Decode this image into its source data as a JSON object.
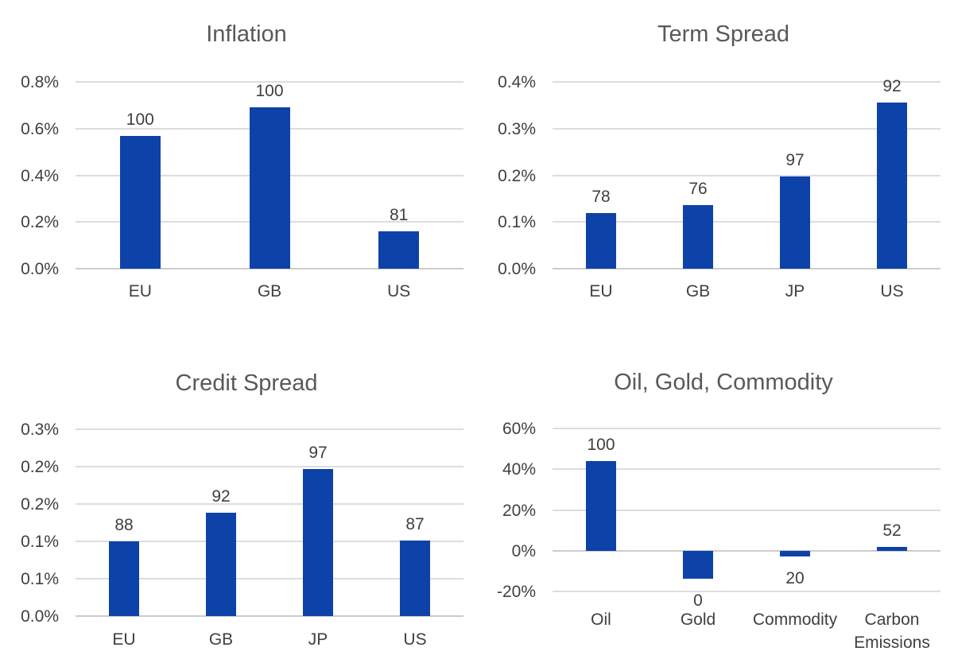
{
  "colors": {
    "bar_fill": "#0d42a8",
    "gridline": "#dddddd",
    "zero_line": "#cccccc",
    "title_text": "#595959",
    "label_text": "#404040",
    "background": "#ffffff"
  },
  "chart_data": [
    {
      "type": "bar",
      "title": "Inflation",
      "categories": [
        "EU",
        "GB",
        "US"
      ],
      "values": [
        0.568,
        0.691,
        0.16
      ],
      "bar_labels": [
        "100",
        "100",
        "81"
      ],
      "ylim": [
        0,
        0.8
      ],
      "yticks": [
        {
          "value": 0.8,
          "label": "0.8%"
        },
        {
          "value": 0.6,
          "label": "0.6%"
        },
        {
          "value": 0.4,
          "label": "0.4%"
        },
        {
          "value": 0.2,
          "label": "0.2%"
        },
        {
          "value": 0.0,
          "label": "0.0%"
        }
      ],
      "grid": true,
      "legend": "none"
    },
    {
      "type": "bar",
      "title": "Term Spread",
      "categories": [
        "EU",
        "GB",
        "JP",
        "US"
      ],
      "values": [
        0.12,
        0.136,
        0.197,
        0.356
      ],
      "bar_labels": [
        "78",
        "76",
        "97",
        "92"
      ],
      "ylim": [
        0,
        0.4
      ],
      "yticks": [
        {
          "value": 0.4,
          "label": "0.4%"
        },
        {
          "value": 0.3,
          "label": "0.3%"
        },
        {
          "value": 0.2,
          "label": "0.2%"
        },
        {
          "value": 0.1,
          "label": "0.1%"
        },
        {
          "value": 0.0,
          "label": "0.0%"
        }
      ],
      "grid": true,
      "legend": "none"
    },
    {
      "type": "bar",
      "title": "Credit Spread",
      "categories": [
        "EU",
        "GB",
        "JP",
        "US"
      ],
      "values": [
        0.1,
        0.138,
        0.197,
        0.101
      ],
      "bar_labels": [
        "88",
        "92",
        "97",
        "87"
      ],
      "ylim": [
        0,
        0.25
      ],
      "yticks": [
        {
          "value": 0.25,
          "label": "0.3%"
        },
        {
          "value": 0.2,
          "label": "0.2%"
        },
        {
          "value": 0.15,
          "label": "0.2%"
        },
        {
          "value": 0.1,
          "label": "0.1%"
        },
        {
          "value": 0.05,
          "label": "0.1%"
        },
        {
          "value": 0.0,
          "label": "0.0%"
        }
      ],
      "grid": true,
      "legend": "none"
    },
    {
      "type": "bar",
      "title": "Oil, Gold, Commodity",
      "categories": [
        "Oil",
        "Gold",
        "Commodity",
        "Carbon Emissions"
      ],
      "values": [
        44,
        -13.6,
        -2.9,
        2.0
      ],
      "bar_labels": [
        "100",
        "0",
        "20",
        "52"
      ],
      "ylim": [
        -20,
        60
      ],
      "yticks": [
        {
          "value": 60,
          "label": "60%"
        },
        {
          "value": 40,
          "label": "40%"
        },
        {
          "value": 20,
          "label": "20%"
        },
        {
          "value": 0,
          "label": "0%"
        },
        {
          "value": -20,
          "label": "-20%"
        }
      ],
      "grid": true,
      "legend": "none"
    }
  ]
}
